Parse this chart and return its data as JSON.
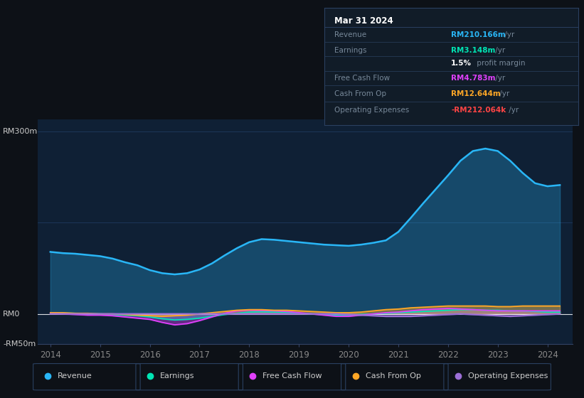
{
  "bg_color": "#0d1117",
  "plot_bg_color": "#0f2035",
  "title": "Mar 31 2024",
  "ylim": [
    -50,
    320
  ],
  "xlim_start": 2013.75,
  "xlim_end": 2024.5,
  "revenue_color": "#29b6f6",
  "earnings_color": "#00e5b4",
  "fcf_color": "#e040fb",
  "cashfromop_color": "#ffa726",
  "opex_color": "#9c6fd6",
  "grid_color": "#1e3a5f",
  "zero_line_color": "#ffffff",
  "ytick_label_color": "#cccccc",
  "xtick_label_color": "#888888",
  "legend_items": [
    {
      "label": "Revenue",
      "color": "#29b6f6"
    },
    {
      "label": "Earnings",
      "color": "#00e5b4"
    },
    {
      "label": "Free Cash Flow",
      "color": "#e040fb"
    },
    {
      "label": "Cash From Op",
      "color": "#ffa726"
    },
    {
      "label": "Operating Expenses",
      "color": "#9c6fd6"
    }
  ],
  "info_box": {
    "title": "Mar 31 2024",
    "title_color": "#ffffff",
    "bg_color": "#111c28",
    "border_color": "#2a4060",
    "rows": [
      {
        "label": "Revenue",
        "value": "RM210.166m",
        "unit": " /yr",
        "value_color": "#29b6f6"
      },
      {
        "label": "Earnings",
        "value": "RM3.148m",
        "unit": " /yr",
        "value_color": "#00e5b4"
      },
      {
        "label": "",
        "value": "1.5%",
        "unit": " profit margin",
        "value_color": "#ffffff"
      },
      {
        "label": "Free Cash Flow",
        "value": "RM4.783m",
        "unit": " /yr",
        "value_color": "#e040fb"
      },
      {
        "label": "Cash From Op",
        "value": "RM12.644m",
        "unit": " /yr",
        "value_color": "#ffa726"
      },
      {
        "label": "Operating Expenses",
        "value": "-RM212.064k",
        "unit": " /yr",
        "value_color": "#ff4444"
      }
    ]
  },
  "quarters": [
    2014.0,
    2014.25,
    2014.5,
    2014.75,
    2015.0,
    2015.25,
    2015.5,
    2015.75,
    2016.0,
    2016.25,
    2016.5,
    2016.75,
    2017.0,
    2017.25,
    2017.5,
    2017.75,
    2018.0,
    2018.25,
    2018.5,
    2018.75,
    2019.0,
    2019.25,
    2019.5,
    2019.75,
    2020.0,
    2020.25,
    2020.5,
    2020.75,
    2021.0,
    2021.25,
    2021.5,
    2021.75,
    2022.0,
    2022.25,
    2022.5,
    2022.75,
    2023.0,
    2023.25,
    2023.5,
    2023.75,
    2024.0,
    2024.25
  ],
  "revenue": [
    102,
    100,
    99,
    97,
    95,
    91,
    85,
    80,
    72,
    67,
    65,
    67,
    73,
    83,
    96,
    108,
    118,
    123,
    122,
    120,
    118,
    116,
    114,
    113,
    112,
    114,
    117,
    121,
    135,
    158,
    182,
    205,
    228,
    252,
    268,
    272,
    268,
    252,
    232,
    215,
    210,
    212
  ],
  "earnings": [
    2,
    1.5,
    1,
    0.5,
    0,
    -1,
    -2,
    -3,
    -5,
    -8,
    -10,
    -9,
    -7,
    -4,
    -1,
    1,
    3,
    3.5,
    3,
    2.5,
    1,
    0,
    -1,
    -2,
    -2,
    -1,
    0,
    1,
    2,
    3,
    4,
    5,
    6,
    7,
    7,
    6,
    6,
    5,
    5,
    4,
    3,
    3
  ],
  "fcf": [
    1,
    0,
    -1,
    -2,
    -2,
    -3,
    -5,
    -7,
    -9,
    -14,
    -18,
    -16,
    -11,
    -5,
    1,
    5,
    6,
    5.5,
    5,
    4,
    2,
    0,
    -2,
    -4,
    -4,
    -2,
    0,
    2,
    3,
    5,
    7,
    8,
    9,
    8,
    7,
    6,
    5,
    5,
    5,
    5,
    5,
    5
  ],
  "cashfromop": [
    2,
    2,
    1,
    1,
    0,
    0,
    -1,
    -2,
    -3,
    -4,
    -3,
    -2,
    0,
    2,
    4,
    6,
    7,
    7,
    6,
    6,
    5,
    4,
    3,
    2,
    2,
    3,
    5,
    7,
    8,
    10,
    11,
    12,
    13,
    13,
    13,
    13,
    12,
    12,
    13,
    13,
    13,
    13
  ],
  "opex": [
    0,
    0,
    0,
    0,
    0,
    0,
    0,
    0,
    0,
    0,
    0,
    0,
    0,
    0,
    0,
    0,
    0,
    0,
    0,
    0,
    0,
    0,
    0,
    0,
    -1,
    -2,
    -3,
    -4,
    -4,
    -4,
    -3,
    -2,
    -1,
    0,
    -1,
    -2,
    -3,
    -4,
    -3,
    -2,
    -1,
    0
  ]
}
